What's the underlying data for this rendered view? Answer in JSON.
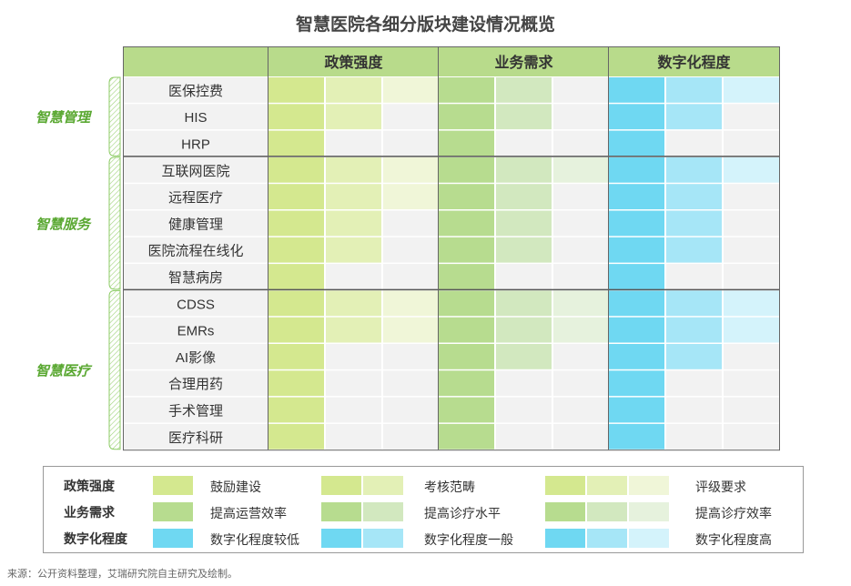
{
  "title": "智慧医院各细分版块建设情况概览",
  "colors": {
    "header": "#b8db8b",
    "policy": [
      "#d4e88f",
      "#e3f0b6",
      "#f0f6d8"
    ],
    "business": [
      "#b7dc8f",
      "#d2e8bf",
      "#e6f2dd"
    ],
    "digital": [
      "#6fd8f2",
      "#a6e6f7",
      "#d4f3fb"
    ],
    "empty": "#f2f2f2",
    "group_text": "#5aa832"
  },
  "chart_data": {
    "type": "table",
    "columns": [
      "政策强度",
      "业务需求",
      "数字化程度"
    ],
    "groups": [
      {
        "name": "智慧管理",
        "rows": [
          {
            "name": "医保控费",
            "levels": [
              3,
              2,
              3
            ]
          },
          {
            "name": "HIS",
            "levels": [
              2,
              2,
              2
            ]
          },
          {
            "name": "HRP",
            "levels": [
              1,
              1,
              1
            ]
          }
        ]
      },
      {
        "name": "智慧服务",
        "rows": [
          {
            "name": "互联网医院",
            "levels": [
              3,
              3,
              3
            ]
          },
          {
            "name": "远程医疗",
            "levels": [
              3,
              2,
              2
            ]
          },
          {
            "name": "健康管理",
            "levels": [
              2,
              2,
              2
            ]
          },
          {
            "name": "医院流程在线化",
            "levels": [
              2,
              2,
              2
            ]
          },
          {
            "name": "智慧病房",
            "levels": [
              1,
              1,
              1
            ]
          }
        ]
      },
      {
        "name": "智慧医疗",
        "rows": [
          {
            "name": "CDSS",
            "levels": [
              3,
              3,
              3
            ]
          },
          {
            "name": "EMRs",
            "levels": [
              3,
              3,
              3
            ]
          },
          {
            "name": "AI影像",
            "levels": [
              1,
              2,
              2
            ]
          },
          {
            "name": "合理用药",
            "levels": [
              1,
              1,
              1
            ]
          },
          {
            "name": "手术管理",
            "levels": [
              1,
              1,
              1
            ]
          },
          {
            "name": "医疗科研",
            "levels": [
              1,
              1,
              1
            ]
          }
        ]
      }
    ]
  },
  "legend": [
    {
      "label": "政策强度",
      "items": [
        "鼓励建设",
        "考核范畴",
        "评级要求"
      ]
    },
    {
      "label": "业务需求",
      "items": [
        "提高运营效率",
        "提高诊疗水平",
        "提高诊疗效率"
      ]
    },
    {
      "label": "数字化程度",
      "items": [
        "数字化程度较低",
        "数字化程度一般",
        "数字化程度高"
      ]
    }
  ],
  "source": "来源：公开资料整理，艾瑞研究院自主研究及绘制。"
}
